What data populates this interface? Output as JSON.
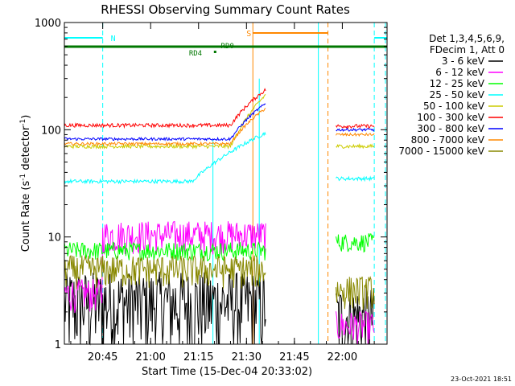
{
  "chart_data": {
    "type": "line",
    "title": "RHESSI Observing Summary Count Rates",
    "xlabel": "Start Time (15-Dec-04 20:33:02)",
    "ylabel_main": "Count Rate (s",
    "ylabel_sup1": "-1",
    "ylabel_mid": " detector",
    "ylabel_sup2": "-1",
    "ylabel_end": ")",
    "y_scale": "log",
    "ylim": [
      1,
      1000
    ],
    "xlim_minutes": [
      0,
      101
    ],
    "x_ticks": [
      {
        "m": 12,
        "label": "20:45"
      },
      {
        "m": 27,
        "label": "21:00"
      },
      {
        "m": 42,
        "label": "21:15"
      },
      {
        "m": 57,
        "label": "21:30"
      },
      {
        "m": 72,
        "label": "21:45"
      },
      {
        "m": 87,
        "label": "22:00"
      }
    ],
    "y_ticks": [
      {
        "v": 1,
        "label": "1"
      },
      {
        "v": 10,
        "label": "10"
      },
      {
        "v": 100,
        "label": "100"
      },
      {
        "v": 1000,
        "label": "1000"
      }
    ],
    "legend_header": [
      "Det 1,3,4,5,6,9,",
      "FDecim 1, Att 0"
    ],
    "series": [
      {
        "name": "3 - 6 keV",
        "color": "#000000"
      },
      {
        "name": "6 - 12 keV",
        "color": "#ff00ff"
      },
      {
        "name": "12 - 25 keV",
        "color": "#00ff00"
      },
      {
        "name": "25 - 50 keV",
        "color": "#00ffff"
      },
      {
        "name": "50 - 100 keV",
        "color": "#cccc00"
      },
      {
        "name": "100 - 300 keV",
        "color": "#ff0000"
      },
      {
        "name": "300 - 800 keV",
        "color": "#0000ff"
      },
      {
        "name": "800 - 7000 keV",
        "color": "#ff8800"
      },
      {
        "name": "7000 - 15000 keV",
        "color": "#888800"
      }
    ],
    "segments": [
      {
        "from": 0,
        "to": 63,
        "levels": [
          2.5,
          10.5,
          7.5,
          33,
          70,
          110,
          82,
          74,
          5
        ]
      },
      {
        "from": 85,
        "to": 97,
        "levels": [
          1.8,
          1.5,
          9,
          35,
          70,
          108,
          100,
          90,
          3.2
        ]
      }
    ],
    "annotations": {
      "night_label": "N",
      "saa_label": "S",
      "rd0_label": "RD0",
      "rd4_label": "RD4",
      "night_color": "#00ffff",
      "saa_color": "#ff8800",
      "decim_color": "#007700"
    },
    "timestamp": "23-Oct-2021 18:51"
  }
}
